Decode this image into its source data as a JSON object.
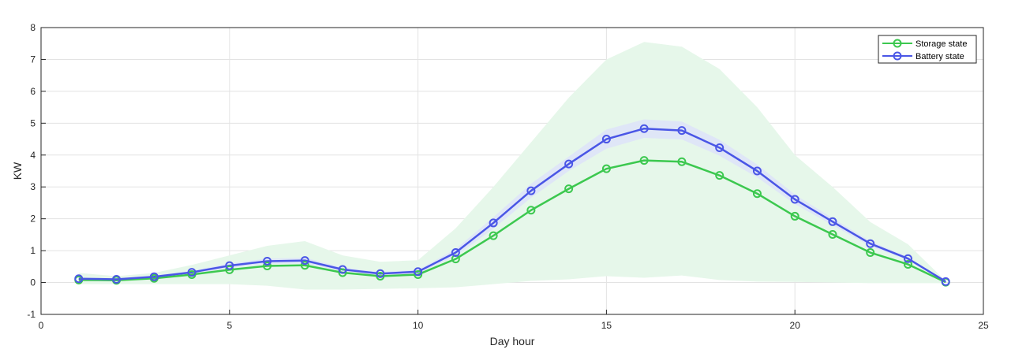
{
  "chart_data": {
    "type": "line",
    "xlabel": "Day hour",
    "ylabel": "KW",
    "xlim": [
      0,
      25
    ],
    "ylim": [
      -1,
      8
    ],
    "xticks": [
      0,
      5,
      10,
      15,
      20,
      25
    ],
    "yticks": [
      -1,
      0,
      1,
      2,
      3,
      4,
      5,
      6,
      7,
      8
    ],
    "grid": true,
    "legend_position": "top-right",
    "x": [
      1,
      2,
      3,
      4,
      5,
      6,
      7,
      8,
      9,
      10,
      11,
      12,
      13,
      14,
      15,
      16,
      17,
      18,
      19,
      20,
      21,
      22,
      23,
      24
    ],
    "series": [
      {
        "name": "Storage state",
        "color": "#3cc84f",
        "band_color": "#e6f7ea",
        "values": [
          0.08,
          0.07,
          0.13,
          0.25,
          0.4,
          0.52,
          0.54,
          0.31,
          0.2,
          0.25,
          0.74,
          1.47,
          2.27,
          2.94,
          3.57,
          3.83,
          3.79,
          3.36,
          2.79,
          2.08,
          1.51,
          0.94,
          0.57,
          0.01
        ],
        "band_upper": [
          0.3,
          0.2,
          0.3,
          0.55,
          0.85,
          1.15,
          1.3,
          0.85,
          0.65,
          0.7,
          1.7,
          3.0,
          4.4,
          5.8,
          7.0,
          7.55,
          7.4,
          6.7,
          5.5,
          4.0,
          3.0,
          1.9,
          1.2,
          0.05
        ],
        "band_lower": [
          -0.05,
          -0.05,
          -0.05,
          -0.05,
          -0.05,
          -0.1,
          -0.22,
          -0.22,
          -0.2,
          -0.18,
          -0.15,
          -0.05,
          0.05,
          0.1,
          0.2,
          0.15,
          0.22,
          0.08,
          0.03,
          0.02,
          0.0,
          -0.02,
          -0.02,
          -0.02
        ]
      },
      {
        "name": "Battery state",
        "color": "#4a56e6",
        "band_color": "#dfe6f7",
        "values": [
          0.12,
          0.1,
          0.18,
          0.32,
          0.53,
          0.67,
          0.69,
          0.41,
          0.28,
          0.34,
          0.94,
          1.87,
          2.88,
          3.72,
          4.5,
          4.83,
          4.77,
          4.23,
          3.5,
          2.61,
          1.91,
          1.22,
          0.75,
          0.03
        ],
        "band_upper": [
          0.15,
          0.13,
          0.22,
          0.37,
          0.6,
          0.75,
          0.78,
          0.47,
          0.33,
          0.4,
          1.05,
          2.05,
          3.1,
          3.95,
          4.8,
          5.12,
          5.05,
          4.48,
          3.7,
          2.76,
          2.02,
          1.3,
          0.8,
          0.05
        ],
        "band_lower": [
          0.09,
          0.08,
          0.14,
          0.27,
          0.46,
          0.59,
          0.6,
          0.35,
          0.23,
          0.28,
          0.83,
          1.69,
          2.66,
          3.5,
          4.2,
          4.54,
          4.49,
          3.98,
          3.3,
          2.46,
          1.8,
          1.14,
          0.7,
          0.01
        ]
      }
    ]
  }
}
